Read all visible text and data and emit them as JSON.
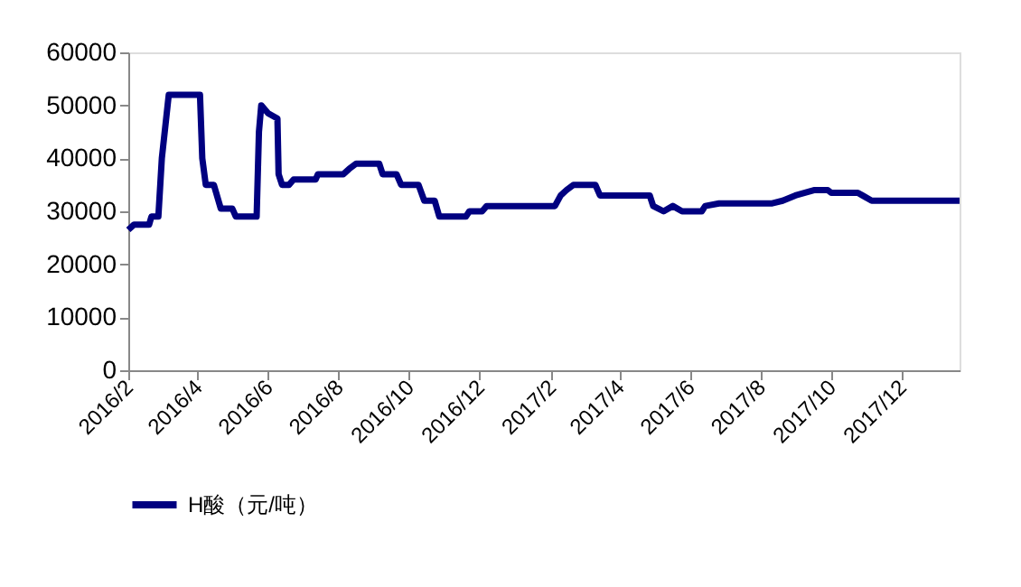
{
  "chart_data": {
    "type": "line",
    "x": [
      "2016-02-01",
      "2016-02-06",
      "2016-02-19",
      "2016-02-21",
      "2016-02-27",
      "2016-03-01",
      "2016-03-07",
      "2016-04-03",
      "2016-04-05",
      "2016-04-08",
      "2016-04-15",
      "2016-04-21",
      "2016-05-01",
      "2016-05-04",
      "2016-05-22",
      "2016-05-24",
      "2016-05-26",
      "2016-06-01",
      "2016-06-09",
      "2016-06-10",
      "2016-06-13",
      "2016-06-19",
      "2016-06-23",
      "2016-07-12",
      "2016-07-14",
      "2016-08-05",
      "2016-08-10",
      "2016-08-16",
      "2016-09-05",
      "2016-09-08",
      "2016-09-20",
      "2016-09-24",
      "2016-10-09",
      "2016-10-14",
      "2016-10-23",
      "2016-10-27",
      "2016-11-19",
      "2016-11-22",
      "2016-12-03",
      "2016-12-07",
      "2017-02-04",
      "2017-02-09",
      "2017-02-14",
      "2017-02-20",
      "2017-03-11",
      "2017-03-15",
      "2017-04-27",
      "2017-04-30",
      "2017-05-09",
      "2017-05-17",
      "2017-05-25",
      "2017-06-11",
      "2017-06-14",
      "2017-06-26",
      "2017-08-11",
      "2017-08-20",
      "2017-08-31",
      "2017-09-16",
      "2017-09-28",
      "2017-10-01",
      "2017-10-24",
      "2017-10-28",
      "2017-11-05",
      "2018-01-20"
    ],
    "series": [
      {
        "name": "H酸（元/吨）",
        "color": "#000080",
        "values": [
          26500,
          27500,
          27500,
          29000,
          29000,
          40000,
          52000,
          52000,
          40000,
          35000,
          35000,
          30500,
          30500,
          29000,
          29000,
          45000,
          50000,
          48500,
          47500,
          37000,
          35000,
          35000,
          36000,
          36000,
          37000,
          37000,
          38000,
          39000,
          39000,
          37000,
          37000,
          35000,
          35000,
          32000,
          32000,
          29000,
          29000,
          30000,
          30000,
          31000,
          31000,
          33000,
          34000,
          35000,
          35000,
          33000,
          33000,
          31000,
          30000,
          31000,
          30000,
          30000,
          31000,
          31500,
          31500,
          32000,
          33000,
          34000,
          34000,
          33500,
          33500,
          33000,
          32000,
          32000
        ]
      }
    ],
    "xlim": [
      "2016-02-01",
      "2018-01-20"
    ],
    "xticks": [
      {
        "value": "2016-02-01",
        "label": "2016/2"
      },
      {
        "value": "2016-04-01",
        "label": "2016/4"
      },
      {
        "value": "2016-06-01",
        "label": "2016/6"
      },
      {
        "value": "2016-08-01",
        "label": "2016/8"
      },
      {
        "value": "2016-10-01",
        "label": "2016/10"
      },
      {
        "value": "2016-12-01",
        "label": "2016/12"
      },
      {
        "value": "2017-02-01",
        "label": "2017/2"
      },
      {
        "value": "2017-04-01",
        "label": "2017/4"
      },
      {
        "value": "2017-06-01",
        "label": "2017/6"
      },
      {
        "value": "2017-08-01",
        "label": "2017/8"
      },
      {
        "value": "2017-10-01",
        "label": "2017/10"
      },
      {
        "value": "2017-12-01",
        "label": "2017/12"
      }
    ],
    "ylim": [
      0,
      60000
    ],
    "yticks": [
      0,
      10000,
      20000,
      30000,
      40000,
      50000,
      60000
    ],
    "grid": false,
    "legend": "bottom",
    "marker": "none",
    "line_style": "solid"
  }
}
